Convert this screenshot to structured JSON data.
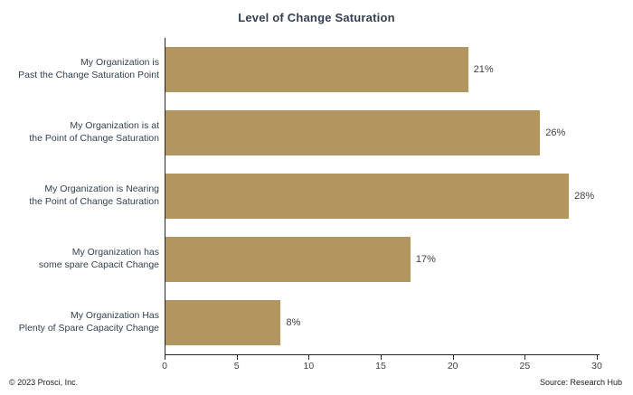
{
  "title": "Level of Change Saturation",
  "footer": {
    "left": "© 2023 Prosci, Inc.",
    "right": "Source: Research Hub"
  },
  "chart_data": {
    "type": "bar",
    "orientation": "horizontal",
    "title": "Level of Change Saturation",
    "xlabel": "",
    "ylabel": "",
    "xlim": [
      0,
      30
    ],
    "xticks": [
      0,
      5,
      10,
      15,
      20,
      25,
      30
    ],
    "grid": false,
    "legend": false,
    "bar_color": "#b29561",
    "categories": [
      {
        "line1": "My Organization is",
        "line2": "Past the Change Saturation Point"
      },
      {
        "line1": "My Organization is at",
        "line2": "the Point of Change Saturation"
      },
      {
        "line1": "My Organization is Nearing",
        "line2": "the Point of Change Saturation"
      },
      {
        "line1": "My Organization has",
        "line2": "some spare Capacit Change"
      },
      {
        "line1": "My Organization Has",
        "line2": "Plenty of Spare Capacity Change"
      }
    ],
    "values": [
      21,
      26,
      28,
      17,
      8
    ],
    "value_labels": [
      "21%",
      "26%",
      "28%",
      "17%",
      "8%"
    ]
  }
}
